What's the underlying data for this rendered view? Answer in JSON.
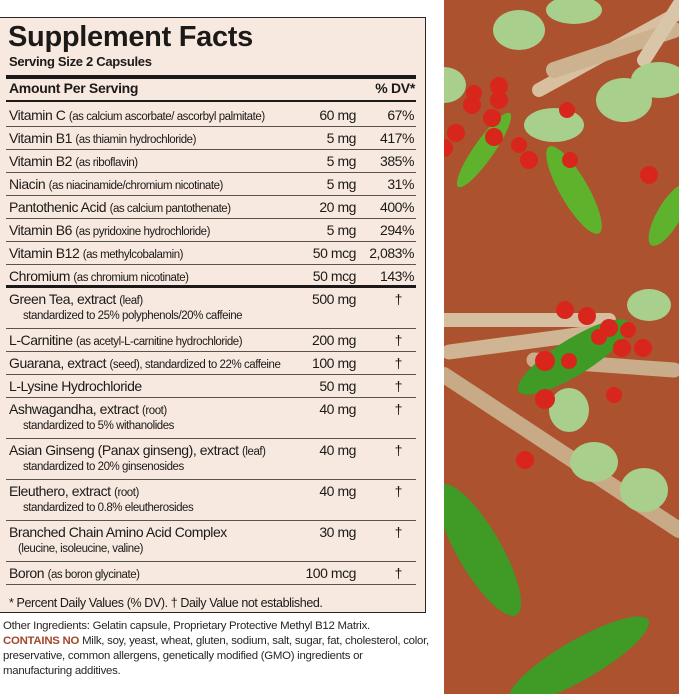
{
  "panel": {
    "title": "Supplement Facts",
    "serving_size": "Serving Size 2 Capsules",
    "header_amount": "Amount Per Serving",
    "header_dv": "% DV*",
    "rows": [
      {
        "name": "Vitamin C",
        "qualifier": "(as calcium ascorbate/ ascorbyl palmitate)",
        "amount": "60 mg",
        "dv": "67%"
      },
      {
        "name": "Vitamin B1",
        "qualifier": "(as thiamin hydrochloride)",
        "amount": "5 mg",
        "dv": "417%"
      },
      {
        "name": "Vitamin B2",
        "qualifier": "(as riboflavin)",
        "amount": "5 mg",
        "dv": "385%"
      },
      {
        "name": "Niacin",
        "qualifier": "(as niacinamide/chromium nicotinate)",
        "amount": "5 mg",
        "dv": "31%"
      },
      {
        "name": "Pantothenic Acid",
        "qualifier": "(as calcium pantothenate)",
        "amount": "20 mg",
        "dv": "400%"
      },
      {
        "name": "Vitamin B6",
        "qualifier": "(as pyridoxine hydrochloride)",
        "amount": "5 mg",
        "dv": "294%"
      },
      {
        "name": "Vitamin B12",
        "qualifier": "(as methylcobalamin)",
        "amount": "50 mcg",
        "dv": "2,083%"
      },
      {
        "name": "Chromium",
        "qualifier": "(as chromium nicotinate)",
        "amount": "50 mcg",
        "dv": "143%",
        "section_end": true
      },
      {
        "name": "Green Tea, extract",
        "qualifier": "(leaf)",
        "sub": "standardized to 25% polyphenols/20% caffeine",
        "amount": "500 mg",
        "dv": "†"
      },
      {
        "name": "L-Carnitine",
        "qualifier": "(as acetyl-L-carnitine hydrochloride)",
        "amount": "200 mg",
        "dv": "†"
      },
      {
        "name": "Guarana, extract",
        "qualifier": "(seed), standardized to 22% caffeine",
        "amount": "100 mg",
        "dv": "†"
      },
      {
        "name": "L-Lysine Hydrochloride",
        "qualifier": "",
        "amount": "50 mg",
        "dv": "†"
      },
      {
        "name": "Ashwagandha, extract",
        "qualifier": "(root)",
        "sub": "standardized to 5% withanolides",
        "amount": "40 mg",
        "dv": "†"
      },
      {
        "name": "Asian Ginseng (Panax ginseng), extract",
        "qualifier": "(leaf)",
        "sub": "standardized to 20% ginsenosides",
        "amount": "40 mg",
        "dv": "†"
      },
      {
        "name": "Eleuthero, extract",
        "qualifier": "(root)",
        "sub": "standardized to 0.8% eleutherosides",
        "amount": "40 mg",
        "dv": "†"
      },
      {
        "name": "Branched Chain Amino Acid Complex",
        "qualifier": "",
        "sub": "(leucine, isoleucine, valine)",
        "amount": "30 mg",
        "dv": "†"
      },
      {
        "name": "Boron",
        "qualifier": "(as boron glycinate)",
        "amount": "100 mcg",
        "dv": "†"
      }
    ],
    "footnote": "* Percent Daily Values (% DV). † Daily Value not established."
  },
  "other_ingredients": "Other Ingredients: Gelatin capsule, Proprietary Protective Methyl B12 Matrix.",
  "contains_no_label": "CONTAINS NO",
  "contains_no_text": "Milk, soy, yeast, wheat, gluten, sodium, salt, sugar, fat, cholesterol, color, preservative, common allergens, genetically modified (GMO) ingredients or manufacturing additives.",
  "colors": {
    "panel_bg": "#f8e9e0",
    "art_bg": "#ad522e",
    "contains_no": "#a4472a"
  }
}
